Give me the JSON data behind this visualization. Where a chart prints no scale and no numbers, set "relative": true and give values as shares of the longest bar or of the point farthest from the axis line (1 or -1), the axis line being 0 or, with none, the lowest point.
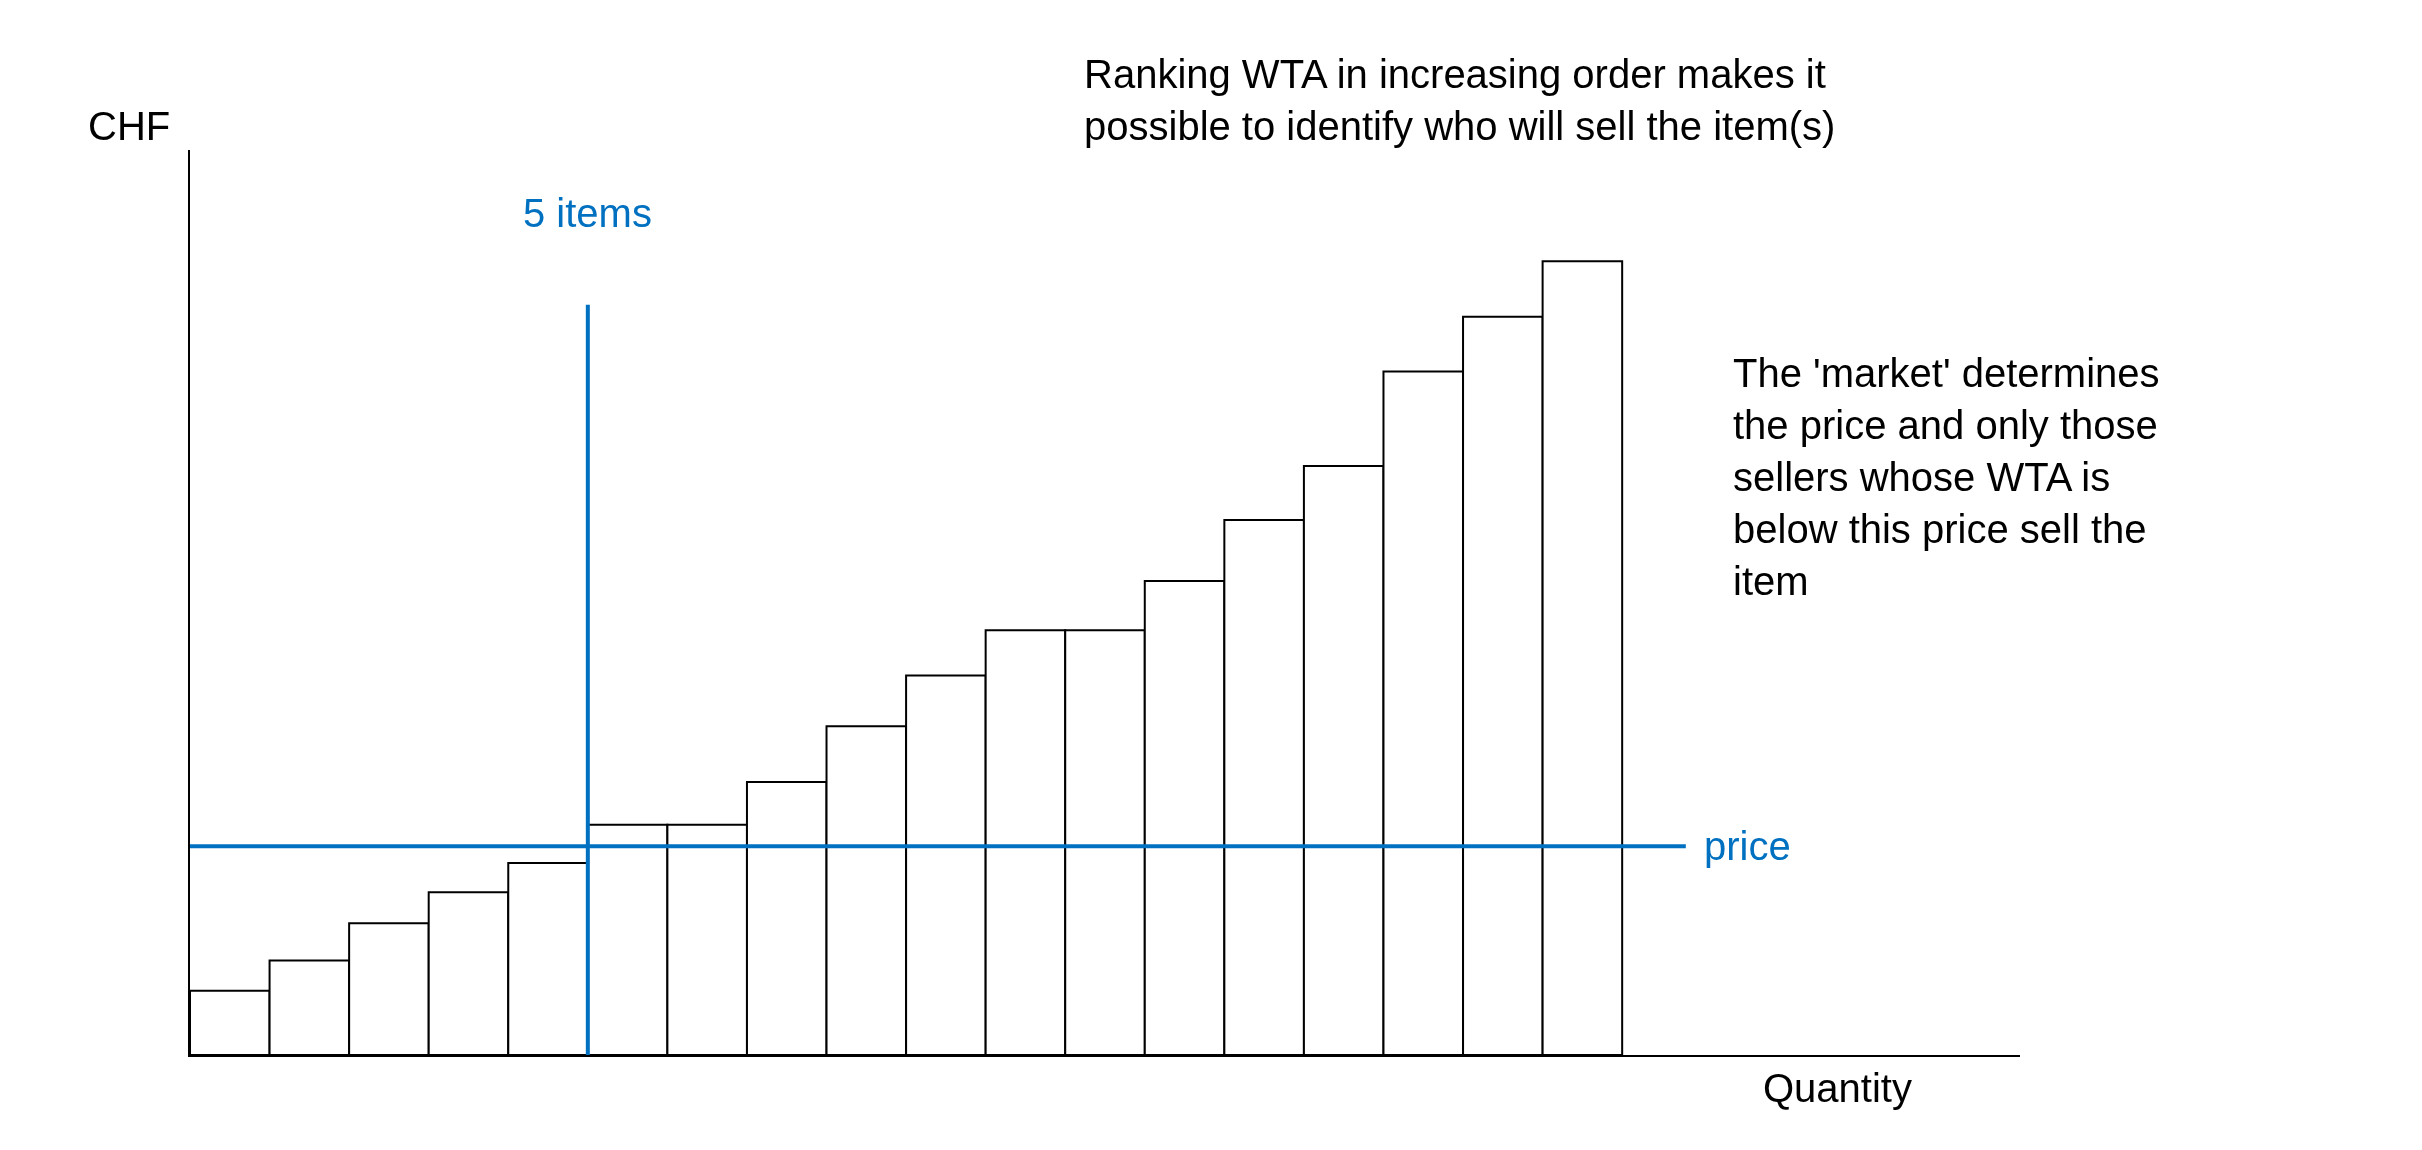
{
  "chart_data": {
    "type": "bar",
    "relative": true,
    "xlabel": "Quantity",
    "ylabel": "CHF",
    "categories": [
      null,
      null,
      null,
      null,
      null,
      null,
      null,
      null,
      null,
      null,
      null,
      null,
      null,
      null,
      null,
      null,
      null,
      null
    ],
    "values": [
      0.081,
      0.119,
      0.166,
      0.205,
      0.242,
      0.29,
      0.29,
      0.344,
      0.414,
      0.478,
      0.535,
      0.535,
      0.597,
      0.674,
      0.742,
      0.861,
      0.93,
      1
    ],
    "color": "#ffffff",
    "ref_lines": [
      {
        "axis": "y",
        "value": 0.263,
        "label": "price",
        "color": "#0070c0"
      }
    ],
    "annotations": [
      "Ranking WTA in increasing order makes it possible to identify who will sell the item(s)",
      "The 'market' determines the price and only those sellers whose WTA is below this price sell the item",
      "5 items"
    ]
  }
}
